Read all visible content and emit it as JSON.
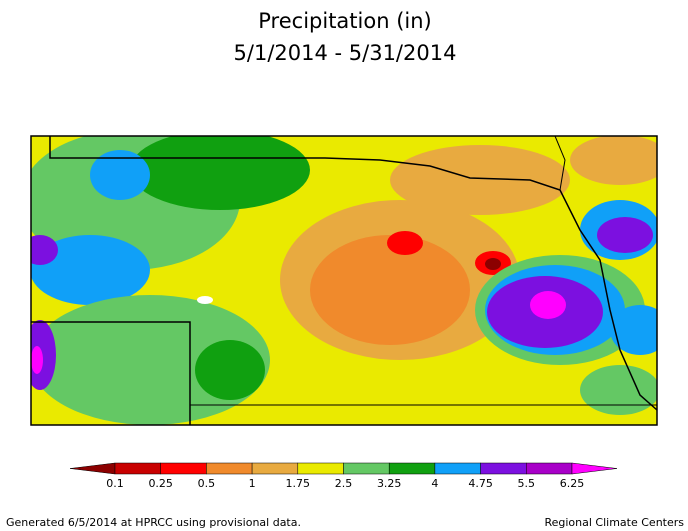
{
  "title": [
    "Precipitation (in)",
    "5/1/2014 - 5/31/2014"
  ],
  "legend": {
    "labels": [
      "0.1",
      "0.25",
      "0.5",
      "1",
      "1.75",
      "2.5",
      "3.25",
      "4",
      "4.75",
      "5.5",
      "6.25"
    ],
    "colors": [
      "#8c0000",
      "#c80000",
      "#ff0000",
      "#f08a2c",
      "#e8aa40",
      "#eaea00",
      "#64c864",
      "#10a010",
      "#10a0f8",
      "#7c10e0",
      "#a800c8",
      "#ff00ff"
    ]
  },
  "footer": {
    "left": "Generated 6/5/2014 at HPRCC using provisional data.",
    "right": "Regional Climate Centers"
  }
}
